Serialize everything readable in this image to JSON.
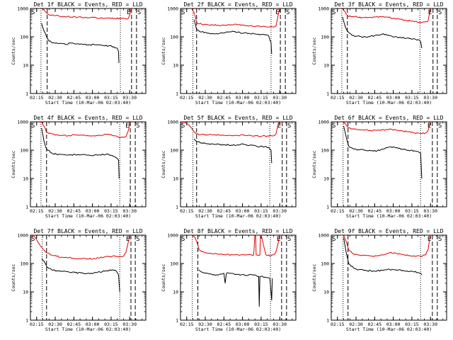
{
  "figure": {
    "x_axis_title": "Start Time (10-Mar-06 02:03:40)",
    "y_axis_title": "Counts/sec",
    "x_tick_labels": [
      "02:15",
      "02:30",
      "02:45",
      "03:00",
      "03:15",
      "03:30"
    ],
    "y_tick_labels": [
      "1",
      "10",
      "100",
      "1000"
    ],
    "marker_start": "S",
    "marker_end": "E",
    "colors": {
      "events": "#000000",
      "lld": "#e00000",
      "axes": "#000000"
    }
  },
  "chart_data": [
    {
      "type": "line",
      "title": "Det 1f BLACK = Events, RED = LLD",
      "yscale": "log",
      "ylim": [
        1,
        1000
      ],
      "x_unit": "minutes after 02:03:40",
      "xlim": [
        7,
        100
      ],
      "dotted_lines": [
        15.5,
        79.5
      ],
      "dashed_lines": [
        20.5,
        88.5,
        92.5
      ],
      "series": [
        {
          "name": "Events",
          "color": "#000000",
          "x": [
            16,
            18,
            20,
            22,
            26,
            30,
            35,
            40,
            45,
            50,
            55,
            60,
            65,
            70,
            74,
            77,
            78,
            78.3
          ],
          "y": [
            300,
            160,
            100,
            70,
            62,
            58,
            55,
            60,
            57,
            54,
            53,
            52,
            50,
            48,
            45,
            40,
            30,
            12
          ]
        },
        {
          "name": "LLD",
          "color": "#e00000",
          "x": [
            14,
            16,
            18,
            20,
            22,
            26,
            30,
            35,
            40,
            45,
            50,
            55,
            60,
            65,
            70,
            75,
            80,
            84,
            86,
            87,
            88,
            89,
            90
          ],
          "y": [
            1000,
            1000,
            900,
            700,
            600,
            560,
            540,
            520,
            500,
            490,
            480,
            470,
            470,
            460,
            460,
            450,
            440,
            430,
            450,
            600,
            900,
            1000,
            1000
          ]
        }
      ]
    },
    {
      "type": "line",
      "title": "Det 2f BLACK = Events, RED = LLD",
      "yscale": "log",
      "ylim": [
        1,
        1000
      ],
      "x_unit": "minutes after 02:03:40",
      "xlim": [
        7,
        100
      ],
      "dotted_lines": [
        17,
        80
      ],
      "dashed_lines": [
        20,
        87.5,
        91.5
      ],
      "series": [
        {
          "name": "Events",
          "color": "#000000",
          "x": [
            18,
            20,
            24,
            28,
            33,
            38,
            43,
            48,
            53,
            58,
            63,
            68,
            73,
            76,
            78,
            80,
            80.5
          ],
          "y": [
            400,
            180,
            150,
            140,
            130,
            130,
            140,
            150,
            145,
            135,
            130,
            125,
            120,
            118,
            110,
            60,
            25
          ]
        },
        {
          "name": "LLD",
          "color": "#e00000",
          "x": [
            16,
            18,
            20,
            24,
            28,
            33,
            38,
            43,
            48,
            53,
            58,
            63,
            68,
            73,
            78,
            82,
            84,
            85,
            86,
            87,
            88
          ],
          "y": [
            1000,
            700,
            320,
            280,
            270,
            260,
            255,
            260,
            270,
            270,
            260,
            250,
            240,
            230,
            220,
            220,
            240,
            400,
            700,
            1000,
            1000
          ]
        }
      ]
    },
    {
      "type": "line",
      "title": "Det 3f BLACK = Events, RED = LLD",
      "yscale": "log",
      "ylim": [
        1,
        1000
      ],
      "x_unit": "minutes after 02:03:40",
      "xlim": [
        7,
        100
      ],
      "dotted_lines": [
        15.5,
        78.5
      ],
      "dashed_lines": [
        20,
        89,
        92.5
      ],
      "series": [
        {
          "name": "Events",
          "color": "#000000",
          "x": [
            16,
            18,
            20,
            24,
            28,
            33,
            38,
            43,
            48,
            53,
            58,
            63,
            68,
            73,
            77,
            79,
            80
          ],
          "y": [
            500,
            250,
            160,
            110,
            105,
            100,
            100,
            115,
            125,
            115,
            100,
            95,
            90,
            85,
            80,
            70,
            40
          ]
        },
        {
          "name": "LLD",
          "color": "#e00000",
          "x": [
            14,
            16,
            18,
            20,
            24,
            28,
            33,
            38,
            43,
            48,
            53,
            58,
            63,
            68,
            73,
            78,
            82,
            85,
            86,
            87,
            88
          ],
          "y": [
            1000,
            1000,
            800,
            560,
            520,
            500,
            480,
            480,
            500,
            510,
            490,
            450,
            420,
            380,
            360,
            330,
            330,
            360,
            600,
            1000,
            1000
          ]
        }
      ]
    },
    {
      "type": "line",
      "title": "Det 4f BLACK = Events, RED = LLD",
      "yscale": "log",
      "ylim": [
        1,
        1000
      ],
      "x_unit": "minutes after 02:03:40",
      "xlim": [
        7,
        100
      ],
      "dotted_lines": [
        15.5,
        79
      ],
      "dashed_lines": [
        20,
        87.5,
        91.5
      ],
      "series": [
        {
          "name": "Events",
          "color": "#000000",
          "x": [
            16,
            18,
            20,
            24,
            28,
            33,
            38,
            43,
            48,
            53,
            58,
            63,
            68,
            73,
            76,
            78,
            78.5
          ],
          "y": [
            600,
            200,
            110,
            80,
            72,
            70,
            68,
            70,
            70,
            66,
            65,
            68,
            72,
            64,
            55,
            45,
            10
          ]
        },
        {
          "name": "LLD",
          "color": "#e00000",
          "x": [
            14,
            16,
            18,
            20,
            24,
            28,
            33,
            38,
            43,
            48,
            53,
            58,
            63,
            68,
            73,
            78,
            82,
            84,
            86,
            87,
            88
          ],
          "y": [
            1000,
            1000,
            700,
            420,
            380,
            350,
            330,
            330,
            345,
            340,
            330,
            320,
            330,
            360,
            330,
            290,
            280,
            300,
            500,
            900,
            1000
          ]
        }
      ]
    },
    {
      "type": "line",
      "title": "Det 5f BLACK = Events, RED = LLD",
      "yscale": "log",
      "ylim": [
        1,
        1000
      ],
      "x_unit": "minutes after 02:03:40",
      "xlim": [
        7,
        100
      ],
      "dotted_lines": [
        17,
        79
      ],
      "dashed_lines": [
        20,
        89,
        92.5
      ],
      "series": [
        {
          "name": "Events",
          "color": "#000000",
          "x": [
            18,
            20,
            24,
            28,
            33,
            38,
            43,
            48,
            53,
            58,
            63,
            68,
            73,
            78,
            80,
            80.5
          ],
          "y": [
            250,
            200,
            180,
            170,
            165,
            160,
            155,
            150,
            155,
            160,
            150,
            140,
            135,
            125,
            100,
            35
          ]
        },
        {
          "name": "LLD",
          "color": "#e00000",
          "x": [
            8,
            10,
            12,
            14,
            16,
            18,
            20,
            24,
            28,
            33,
            38,
            43,
            48,
            53,
            58,
            63,
            68,
            73,
            78,
            82,
            84,
            85,
            86,
            87,
            88
          ],
          "y": [
            1000,
            1000,
            900,
            750,
            600,
            450,
            370,
            360,
            350,
            345,
            340,
            330,
            325,
            330,
            340,
            330,
            320,
            315,
            310,
            320,
            380,
            600,
            900,
            1000,
            1000
          ]
        }
      ]
    },
    {
      "type": "line",
      "title": "Det 6f BLACK = Events, RED = LLD",
      "yscale": "log",
      "ylim": [
        1,
        1000
      ],
      "x_unit": "minutes after 02:03:40",
      "xlim": [
        7,
        100
      ],
      "dotted_lines": [
        16.5,
        79
      ],
      "dashed_lines": [
        20.5,
        88.5,
        92.5
      ],
      "series": [
        {
          "name": "Events",
          "color": "#000000",
          "x": [
            17,
            19,
            21,
            25,
            29,
            34,
            39,
            44,
            49,
            54,
            59,
            64,
            69,
            74,
            77,
            79,
            80
          ],
          "y": [
            700,
            300,
            140,
            110,
            105,
            100,
            95,
            95,
            110,
            130,
            120,
            110,
            100,
            95,
            90,
            80,
            10
          ]
        },
        {
          "name": "LLD",
          "color": "#e00000",
          "x": [
            15,
            17,
            19,
            21,
            25,
            29,
            34,
            39,
            44,
            49,
            54,
            59,
            64,
            69,
            74,
            79,
            83,
            85,
            86,
            87,
            88
          ],
          "y": [
            1000,
            1000,
            800,
            600,
            550,
            530,
            510,
            490,
            500,
            530,
            560,
            520,
            480,
            440,
            410,
            390,
            400,
            480,
            700,
            1000,
            1000
          ]
        }
      ]
    },
    {
      "type": "line",
      "title": "Det 7f BLACK = Events, RED = LLD",
      "yscale": "log",
      "ylim": [
        1,
        1000
      ],
      "x_unit": "minutes after 02:03:40",
      "xlim": [
        7,
        100
      ],
      "dotted_lines": [
        16.5,
        79
      ],
      "dashed_lines": [
        20,
        88,
        91.5
      ],
      "series": [
        {
          "name": "Events",
          "color": "#000000",
          "x": [
            16,
            18,
            20,
            24,
            28,
            33,
            38,
            43,
            48,
            53,
            58,
            63,
            68,
            73,
            76,
            78,
            79
          ],
          "y": [
            150,
            120,
            80,
            60,
            55,
            52,
            50,
            48,
            46,
            45,
            46,
            50,
            55,
            60,
            55,
            40,
            10
          ]
        },
        {
          "name": "LLD",
          "color": "#e00000",
          "x": [
            8,
            10,
            12,
            14,
            16,
            18,
            20,
            24,
            28,
            33,
            38,
            43,
            48,
            53,
            58,
            63,
            68,
            73,
            78,
            82,
            84,
            86,
            87,
            88
          ],
          "y": [
            1000,
            900,
            700,
            500,
            380,
            300,
            240,
            200,
            180,
            165,
            160,
            150,
            145,
            145,
            150,
            160,
            175,
            180,
            170,
            180,
            250,
            600,
            1000,
            1000
          ]
        }
      ]
    },
    {
      "type": "line",
      "title": "Det 8f BLACK = Events, RED = LLD",
      "yscale": "log",
      "ylim": [
        1,
        1000
      ],
      "x_unit": "minutes after 02:03:40",
      "xlim": [
        7,
        100
      ],
      "dotted_lines": [
        16.5,
        79.5
      ],
      "dashed_lines": [
        21,
        88.5,
        92.5
      ],
      "series": [
        {
          "name": "Events",
          "color": "#000000",
          "x": [
            22,
            24,
            28,
            32,
            36,
            40,
            42,
            43,
            44,
            48,
            52,
            56,
            60,
            64,
            68,
            70,
            70.5,
            71,
            72,
            76,
            79,
            80,
            80.5,
            81
          ],
          "y": [
            60,
            50,
            45,
            42,
            40,
            42,
            45,
            20,
            45,
            45,
            42,
            40,
            38,
            40,
            38,
            35,
            3,
            35,
            35,
            32,
            30,
            10,
            5,
            30
          ]
        },
        {
          "name": "LLD",
          "color": "#e00000",
          "x": [
            14,
            16,
            18,
            20,
            22,
            26,
            30,
            34,
            38,
            42,
            46,
            50,
            54,
            58,
            62,
            66,
            67,
            67.5,
            68,
            71,
            71.5,
            72,
            76,
            80,
            82,
            84,
            86,
            87,
            88
          ],
          "y": [
            1000,
            1000,
            900,
            600,
            300,
            250,
            230,
            220,
            215,
            210,
            205,
            200,
            195,
            200,
            205,
            200,
            1000,
            1000,
            200,
            200,
            1000,
            1000,
            200,
            190,
            200,
            260,
            600,
            1000,
            1000
          ]
        }
      ]
    },
    {
      "type": "line",
      "title": "Det 9f BLACK = Events, RED = LLD",
      "yscale": "log",
      "ylim": [
        1,
        1000
      ],
      "x_unit": "minutes after 02:03:40",
      "xlim": [
        7,
        100
      ],
      "dotted_lines": [
        16.5,
        79
      ],
      "dashed_lines": [
        20.5,
        88.5,
        92.5
      ],
      "series": [
        {
          "name": "Events",
          "color": "#000000",
          "x": [
            17,
            19,
            21,
            25,
            29,
            34,
            39,
            44,
            49,
            54,
            59,
            64,
            69,
            74,
            77,
            79,
            80
          ],
          "y": [
            800,
            250,
            100,
            70,
            60,
            58,
            55,
            55,
            58,
            62,
            60,
            55,
            52,
            50,
            48,
            45,
            40
          ]
        },
        {
          "name": "LLD",
          "color": "#e00000",
          "x": [
            15,
            17,
            19,
            21,
            25,
            29,
            34,
            39,
            44,
            49,
            54,
            59,
            64,
            69,
            74,
            79,
            83,
            85,
            86,
            87,
            88
          ],
          "y": [
            1000,
            1000,
            600,
            300,
            220,
            200,
            190,
            185,
            185,
            200,
            240,
            230,
            210,
            190,
            185,
            180,
            200,
            300,
            600,
            1000,
            1000
          ]
        }
      ]
    }
  ]
}
